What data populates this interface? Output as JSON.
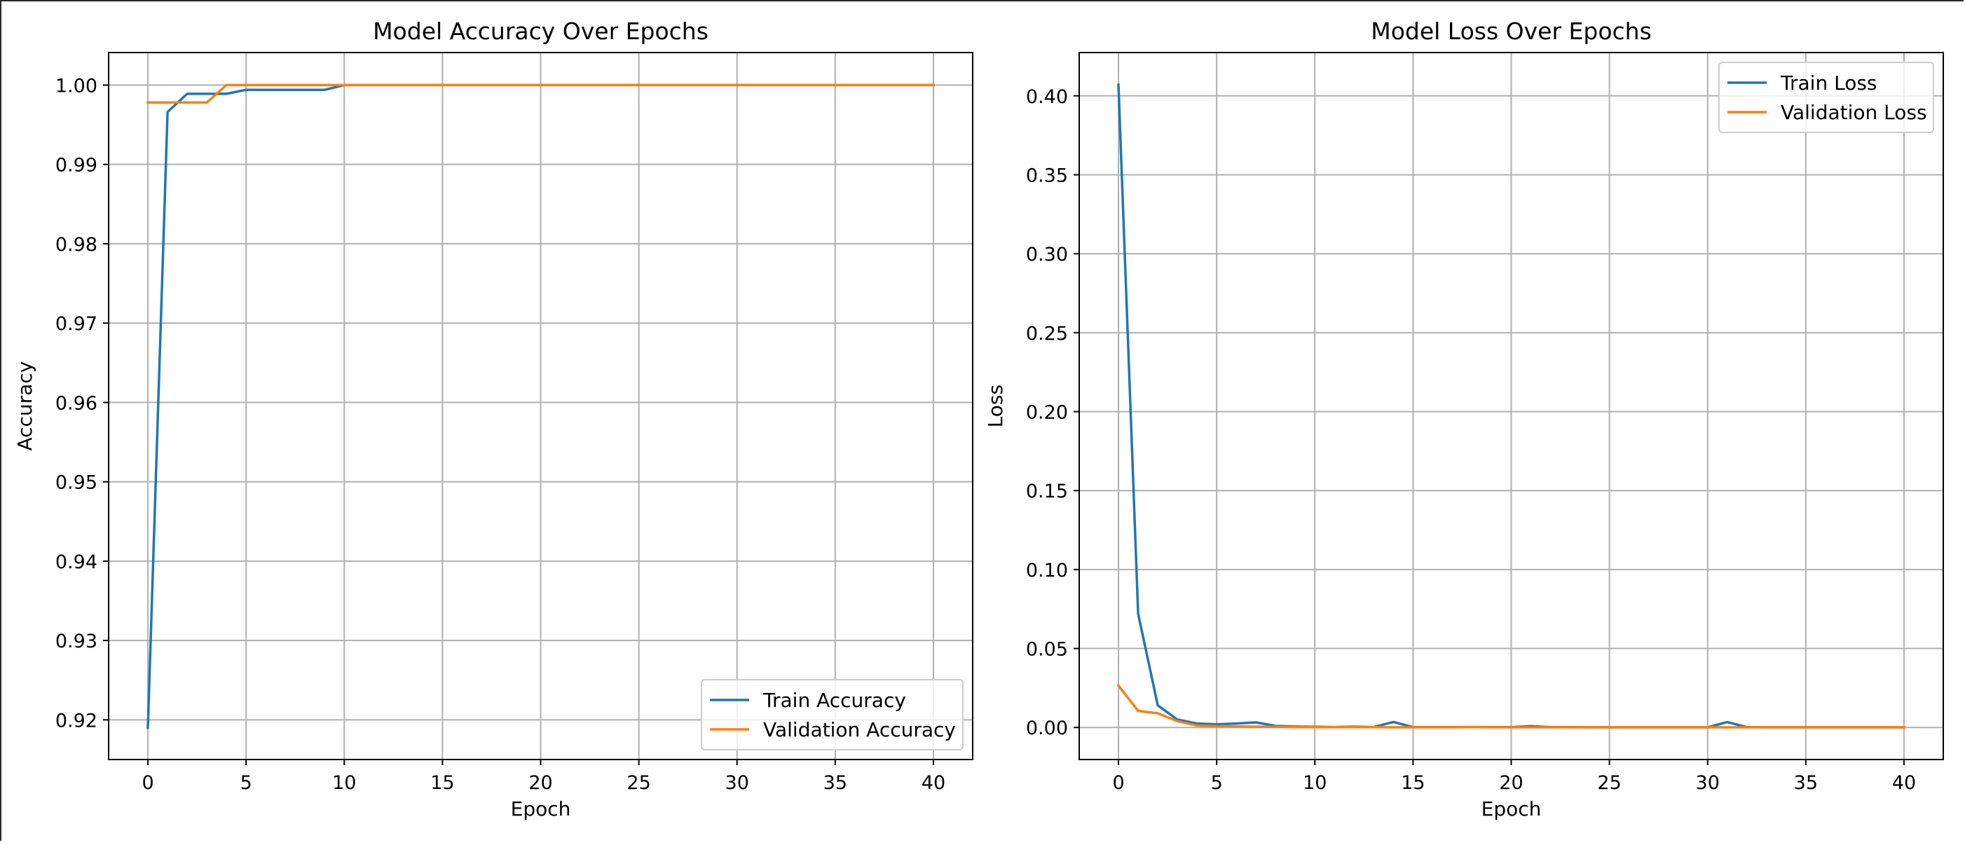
{
  "chart_data": [
    {
      "type": "line",
      "title": "Model Accuracy Over Epochs",
      "xlabel": "Epoch",
      "ylabel": "Accuracy",
      "xlim": [
        -2,
        42
      ],
      "ylim": [
        0.915,
        1.0041
      ],
      "xticks": [
        0,
        5,
        10,
        15,
        20,
        25,
        30,
        35,
        40
      ],
      "yticks": [
        0.92,
        0.93,
        0.94,
        0.95,
        0.96,
        0.97,
        0.98,
        0.99,
        1.0
      ],
      "ytick_labels": [
        "0.92",
        "0.93",
        "0.94",
        "0.95",
        "0.96",
        "0.97",
        "0.98",
        "0.99",
        "1.00"
      ],
      "grid": true,
      "legend_position": "bottom-right",
      "x": [
        0,
        1,
        2,
        3,
        4,
        5,
        6,
        7,
        8,
        9,
        10,
        11,
        12,
        13,
        14,
        15,
        16,
        17,
        18,
        19,
        20,
        21,
        22,
        23,
        24,
        25,
        26,
        27,
        28,
        29,
        30,
        31,
        32,
        33,
        34,
        35,
        36,
        37,
        38,
        39,
        40
      ],
      "series": [
        {
          "name": "Train Accuracy",
          "color": "#1f77b4",
          "values": [
            0.919,
            0.9966,
            0.9989,
            0.9989,
            0.9989,
            0.9994,
            0.9994,
            0.9994,
            0.9994,
            0.9994,
            1.0,
            1.0,
            1.0,
            1.0,
            1.0,
            1.0,
            1.0,
            1.0,
            1.0,
            1.0,
            1.0,
            1.0,
            1.0,
            1.0,
            1.0,
            1.0,
            1.0,
            1.0,
            1.0,
            1.0,
            1.0,
            1.0,
            1.0,
            1.0,
            1.0,
            1.0,
            1.0,
            1.0,
            1.0,
            1.0,
            1.0
          ]
        },
        {
          "name": "Validation Accuracy",
          "color": "#ff7f0e",
          "values": [
            0.9978,
            0.9978,
            0.9978,
            0.9978,
            1.0,
            1.0,
            1.0,
            1.0,
            1.0,
            1.0,
            1.0,
            1.0,
            1.0,
            1.0,
            1.0,
            1.0,
            1.0,
            1.0,
            1.0,
            1.0,
            1.0,
            1.0,
            1.0,
            1.0,
            1.0,
            1.0,
            1.0,
            1.0,
            1.0,
            1.0,
            1.0,
            1.0,
            1.0,
            1.0,
            1.0,
            1.0,
            1.0,
            1.0,
            1.0,
            1.0,
            1.0
          ]
        }
      ]
    },
    {
      "type": "line",
      "title": "Model Loss Over Epochs",
      "xlabel": "Epoch",
      "ylabel": "Loss",
      "xlim": [
        -2,
        42
      ],
      "ylim": [
        -0.0203,
        0.4274
      ],
      "xticks": [
        0,
        5,
        10,
        15,
        20,
        25,
        30,
        35,
        40
      ],
      "yticks": [
        0.0,
        0.05,
        0.1,
        0.15,
        0.2,
        0.25,
        0.3,
        0.35,
        0.4
      ],
      "ytick_labels": [
        "0.00",
        "0.05",
        "0.10",
        "0.15",
        "0.20",
        "0.25",
        "0.30",
        "0.35",
        "0.40"
      ],
      "grid": true,
      "legend_position": "top-right",
      "x": [
        0,
        1,
        2,
        3,
        4,
        5,
        6,
        7,
        8,
        9,
        10,
        11,
        12,
        13,
        14,
        15,
        16,
        17,
        18,
        19,
        20,
        21,
        22,
        23,
        24,
        25,
        26,
        27,
        28,
        29,
        30,
        31,
        32,
        33,
        34,
        35,
        36,
        37,
        38,
        39,
        40
      ],
      "series": [
        {
          "name": "Train Loss",
          "color": "#1f77b4",
          "values": [
            0.407,
            0.072,
            0.014,
            0.005,
            0.0025,
            0.002,
            0.0025,
            0.0032,
            0.001,
            0.0006,
            0.0004,
            0.0003,
            0.0005,
            0.0003,
            0.0035,
            0.0002,
            0.0002,
            0.0002,
            0.0003,
            0.0002,
            0.0002,
            0.0008,
            0.0002,
            0.0002,
            0.0001,
            0.0001,
            0.0001,
            0.0001,
            0.0001,
            0.0001,
            0.0001,
            0.0034,
            0.0002,
            0.0001,
            0.0001,
            0.0001,
            0.0001,
            0.0001,
            0.0001,
            0.0001,
            0.0001
          ]
        },
        {
          "name": "Validation Loss",
          "color": "#ff7f0e",
          "values": [
            0.0265,
            0.0105,
            0.009,
            0.004,
            0.0012,
            0.0008,
            0.0006,
            0.0005,
            0.0004,
            0.0003,
            0.0002,
            0.0002,
            0.0002,
            0.0002,
            0.0001,
            0.0001,
            0.0001,
            0.0001,
            0.0002,
            0.0001,
            0.0001,
            0.0001,
            0.0001,
            0.0001,
            0.0001,
            0.0001,
            0.0001,
            0.0001,
            0.0001,
            0.0001,
            0.0001,
            0.0001,
            0.0001,
            0.0001,
            0.0001,
            0.0001,
            0.0001,
            0.0001,
            0.0001,
            0.0001,
            0.0001
          ]
        }
      ]
    }
  ]
}
